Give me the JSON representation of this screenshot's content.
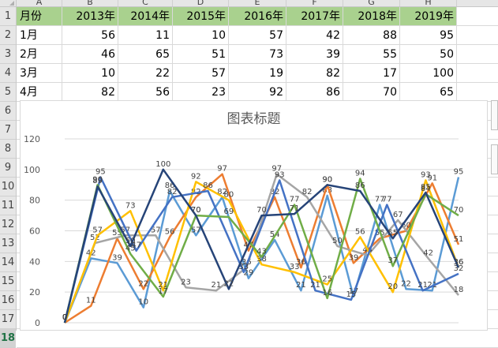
{
  "columns": [
    "A",
    "B",
    "C",
    "D",
    "E",
    "F",
    "G",
    "H"
  ],
  "rows": [
    "1",
    "2",
    "3",
    "4",
    "5",
    "6",
    "7",
    "8",
    "9",
    "10",
    "11",
    "12",
    "13",
    "14",
    "15",
    "16",
    "17",
    "18"
  ],
  "active_row": "18",
  "sheet": {
    "header": [
      "月份",
      "2013年",
      "2014年",
      "2015年",
      "2016年",
      "2017年",
      "2018年",
      "2019年"
    ],
    "data": [
      [
        "1月",
        "56",
        "11",
        "10",
        "57",
        "42",
        "88",
        "95"
      ],
      [
        "2月",
        "46",
        "65",
        "51",
        "73",
        "39",
        "55",
        "50"
      ],
      [
        "3月",
        "10",
        "22",
        "57",
        "19",
        "82",
        "17",
        "100"
      ],
      [
        "4月",
        "82",
        "56",
        "23",
        "92",
        "86",
        "70",
        "65"
      ]
    ],
    "header_color": "#A9D18E"
  },
  "chart_data": {
    "type": "line",
    "title": "图表标题",
    "ylim": [
      0,
      120
    ],
    "yticks": [
      0,
      20,
      40,
      60,
      80,
      100,
      120
    ],
    "grid": true,
    "data_labels": true,
    "series": [
      {
        "color": "#5B9BD5",
        "values": [
          0,
          42,
          39,
          10,
          86,
          57,
          82,
          29,
          54,
          21,
          83,
          17,
          77,
          22,
          21,
          95
        ]
      },
      {
        "color": "#ED7D31",
        "values": [
          0,
          11,
          55,
          22,
          56,
          82,
          97,
          47,
          82,
          36,
          90,
          39,
          55,
          60,
          91,
          51
        ]
      },
      {
        "color": "#A5A5A5",
        "values": [
          0,
          52,
          57,
          57,
          23,
          21,
          36,
          97,
          82,
          50,
          44,
          67,
          42,
          18
        ]
      },
      {
        "color": "#FFC000",
        "values": [
          0,
          57,
          73,
          21,
          92,
          80,
          38,
          33,
          25,
          56,
          20,
          93,
          36
        ]
      },
      {
        "color": "#4472C4",
        "values": [
          0,
          95,
          47,
          82,
          86,
          33,
          93,
          21,
          15,
          77,
          21,
          32
        ]
      },
      {
        "color": "#70AD47",
        "values": [
          0,
          90,
          45,
          17,
          70,
          69,
          43,
          77,
          16,
          94,
          37,
          84,
          70
        ]
      },
      {
        "color": "#264478",
        "values": [
          0,
          89,
          50,
          100,
          70,
          22,
          70,
          71,
          90,
          86,
          55,
          85,
          36
        ]
      }
    ]
  }
}
